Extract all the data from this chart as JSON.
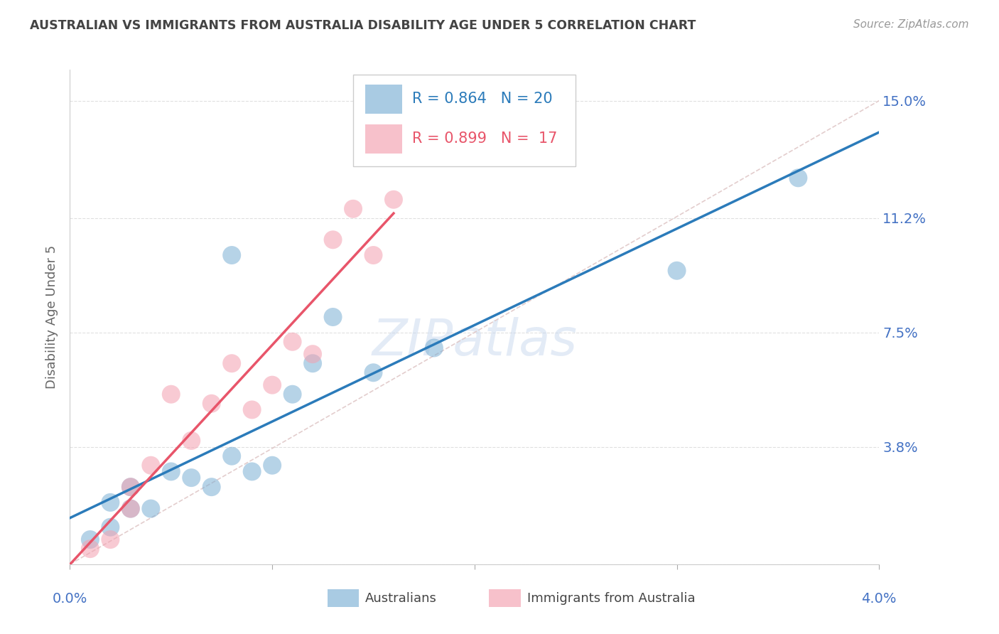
{
  "title": "AUSTRALIAN VS IMMIGRANTS FROM AUSTRALIA DISABILITY AGE UNDER 5 CORRELATION CHART",
  "source": "Source: ZipAtlas.com",
  "ylabel": "Disability Age Under 5",
  "x_label_0": "0.0%",
  "x_label_max": "4.0%",
  "y_ticks": [
    0.0,
    0.038,
    0.075,
    0.112,
    0.15
  ],
  "y_tick_labels": [
    "",
    "3.8%",
    "7.5%",
    "11.2%",
    "15.0%"
  ],
  "xlim": [
    0.0,
    0.04
  ],
  "ylim": [
    0.0,
    0.16
  ],
  "r_australian": 0.864,
  "n_australian": 20,
  "r_immigrant": 0.899,
  "n_immigrant": 17,
  "color_australian": "#7bafd4",
  "color_immigrant": "#f4a0b0",
  "color_australian_line": "#2b7bba",
  "color_immigrant_line": "#e8556a",
  "color_diagonal": "#c8c8c8",
  "australians_x": [
    0.001,
    0.002,
    0.002,
    0.003,
    0.003,
    0.004,
    0.005,
    0.006,
    0.007,
    0.008,
    0.008,
    0.009,
    0.01,
    0.011,
    0.012,
    0.013,
    0.015,
    0.018,
    0.03,
    0.036
  ],
  "australians_y": [
    0.008,
    0.012,
    0.02,
    0.018,
    0.025,
    0.018,
    0.03,
    0.028,
    0.025,
    0.035,
    0.1,
    0.03,
    0.032,
    0.055,
    0.065,
    0.08,
    0.062,
    0.07,
    0.095,
    0.125
  ],
  "immigrants_x": [
    0.001,
    0.002,
    0.003,
    0.003,
    0.004,
    0.005,
    0.006,
    0.007,
    0.008,
    0.009,
    0.01,
    0.011,
    0.012,
    0.013,
    0.014,
    0.015,
    0.016
  ],
  "immigrants_y": [
    0.005,
    0.008,
    0.018,
    0.025,
    0.032,
    0.055,
    0.04,
    0.052,
    0.065,
    0.05,
    0.058,
    0.072,
    0.068,
    0.105,
    0.115,
    0.1,
    0.118
  ],
  "legend_australian": "Australians",
  "legend_immigrant": "Immigrants from Australia",
  "background_color": "#ffffff",
  "grid_color": "#dddddd",
  "title_color": "#444444",
  "tick_label_color": "#4472c4"
}
